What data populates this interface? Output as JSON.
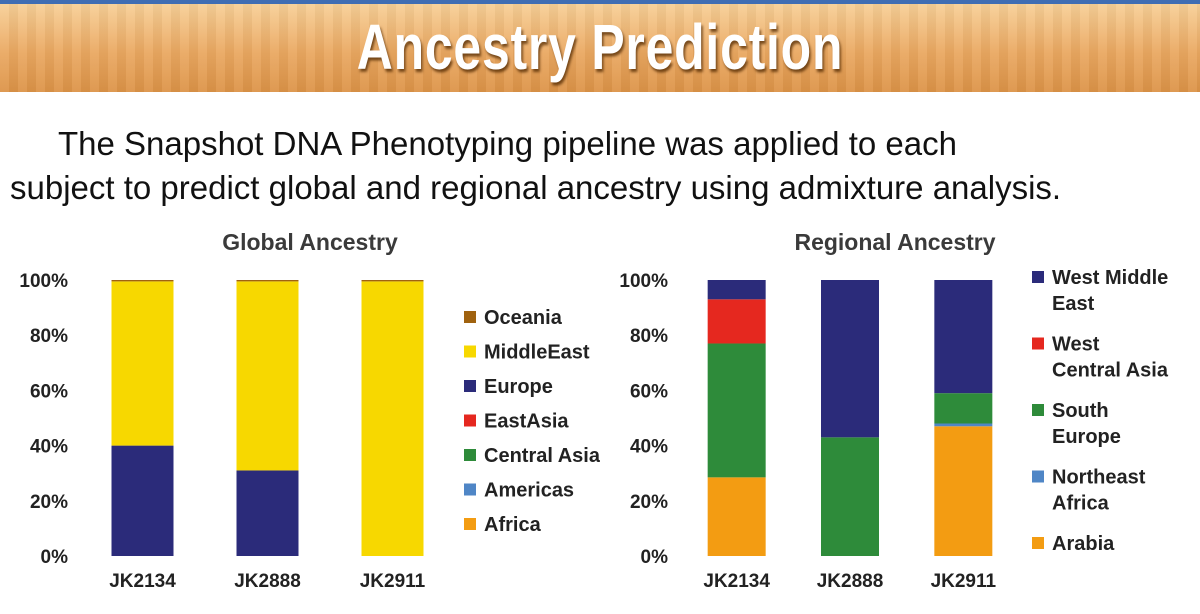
{
  "header": {
    "title": "Ancestry Prediction"
  },
  "intro": {
    "line1": "The Snapshot DNA Phenotyping pipeline was applied to each",
    "line2": "subject to predict global and regional ancestry using admixture analysis."
  },
  "chart_data": [
    {
      "type": "bar",
      "stacked": true,
      "title": "Global Ancestry",
      "categories": [
        "JK2134",
        "JK2888",
        "JK2911"
      ],
      "ylim": [
        0,
        100
      ],
      "yticks": [
        "0%",
        "20%",
        "40%",
        "60%",
        "80%",
        "100%"
      ],
      "legend_position": "right",
      "series": [
        {
          "name": "Africa",
          "color": "#f39c12",
          "values": [
            0,
            0,
            0
          ]
        },
        {
          "name": "Americas",
          "color": "#4f86c6",
          "values": [
            0,
            0,
            0
          ]
        },
        {
          "name": "Central Asia",
          "color": "#2e8b3a",
          "values": [
            0,
            0,
            0
          ]
        },
        {
          "name": "East Asia",
          "color": "#e5281f",
          "values": [
            0,
            0,
            0
          ]
        },
        {
          "name": "Europe",
          "color": "#2b2b7a",
          "values": [
            40,
            31,
            0
          ]
        },
        {
          "name": "Middle East",
          "color": "#f7d800",
          "values": [
            59.5,
            68.5,
            99.5
          ]
        },
        {
          "name": "Oceania",
          "color": "#a0620f",
          "values": [
            0.5,
            0.5,
            0.5
          ]
        }
      ],
      "legend_labels": [
        "Oceania",
        "MiddleEast",
        "Europe",
        "EastAsia",
        "Central Asia",
        "Americas",
        "Africa"
      ]
    },
    {
      "type": "bar",
      "stacked": true,
      "title": "Regional Ancestry",
      "categories": [
        "JK2134",
        "JK2888",
        "JK2911"
      ],
      "ylim": [
        0,
        100
      ],
      "yticks": [
        "0%",
        "20%",
        "40%",
        "60%",
        "80%",
        "100%"
      ],
      "legend_position": "right",
      "series": [
        {
          "name": "Arabia",
          "color": "#f39c12",
          "values": [
            28.5,
            0,
            47
          ]
        },
        {
          "name": "Northeast Africa",
          "color": "#4f86c6",
          "values": [
            0,
            0,
            1
          ]
        },
        {
          "name": "South Europe",
          "color": "#2e8b3a",
          "values": [
            48.5,
            43,
            11
          ]
        },
        {
          "name": "West Central Asia",
          "color": "#e5281f",
          "values": [
            16,
            0,
            0
          ]
        },
        {
          "name": "West Middle East",
          "color": "#2b2b7a",
          "values": [
            7,
            57,
            41
          ]
        }
      ],
      "legend_labels": [
        [
          "West Middle",
          "East"
        ],
        [
          "West",
          "Central Asia"
        ],
        [
          "South",
          "Europe"
        ],
        [
          "Northeast",
          "Africa"
        ],
        [
          "Arabia"
        ]
      ]
    }
  ]
}
